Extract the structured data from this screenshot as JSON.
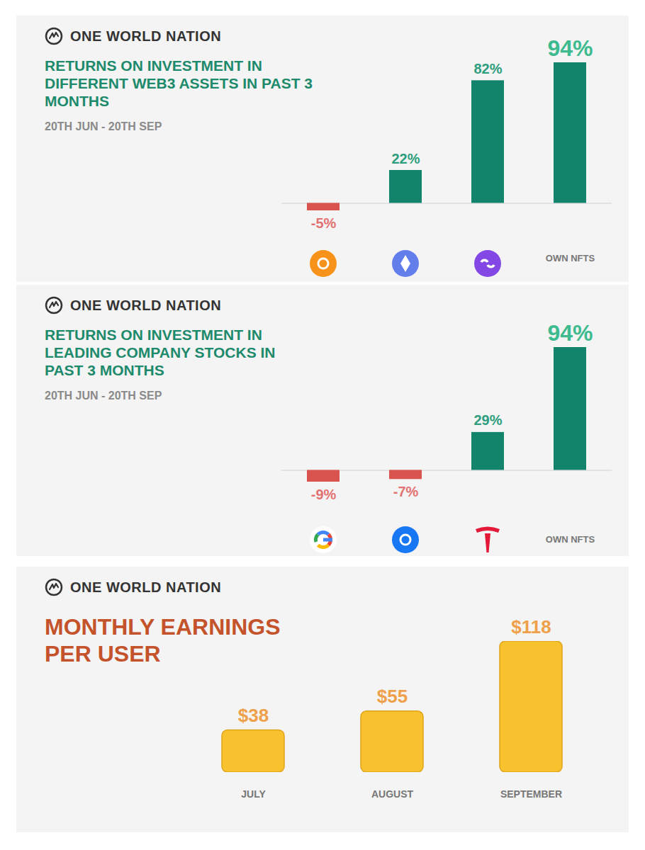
{
  "chart_data": [
    {
      "type": "bar",
      "brand": "ONE WORLD NATION",
      "title": "RETURNS ON INVESTMENT IN DIFFERENT WEB3 ASSETS IN PAST 3 MONTHS",
      "subtitle": "20TH JUN - 20TH SEP",
      "categories": [
        null,
        null,
        null,
        "OWN NFTS"
      ],
      "values": [
        -5,
        22,
        82,
        94
      ],
      "value_labels": [
        "-5%",
        "22%",
        "82%",
        "94%"
      ],
      "colors": [
        "#d9534f",
        "#12846b",
        "#12846b",
        "#12846b"
      ],
      "ylim": [
        -5,
        94
      ],
      "yticks": [],
      "tick_labels": "x",
      "data_labels": true,
      "grid": false
    },
    {
      "type": "bar",
      "brand": "ONE WORLD NATION",
      "title": "RETURNS ON INVESTMENT IN LEADING COMPANY STOCKS IN PAST 3 MONTHS",
      "subtitle": "20TH JUN - 20TH SEP",
      "categories": [
        null,
        null,
        null,
        "OWN NFTS"
      ],
      "values": [
        -9,
        -7,
        29,
        94
      ],
      "value_labels": [
        "-9%",
        "-7%",
        "29%",
        "94%"
      ],
      "colors": [
        "#d9534f",
        "#d9534f",
        "#12846b",
        "#12846b"
      ],
      "ylim": [
        -9,
        94
      ],
      "yticks": [],
      "tick_labels": "x",
      "data_labels": true,
      "grid": false
    },
    {
      "type": "bar",
      "brand": "ONE WORLD NATION",
      "title": "MONTHLY EARNINGS PER USER",
      "categories": [
        "JULY",
        "AUGUST",
        "SEPTEMBER"
      ],
      "values": [
        38,
        55,
        118
      ],
      "value_labels": [
        "$38",
        "$55",
        "$118"
      ],
      "color": "#f7c22e",
      "ylim": [
        0,
        118
      ],
      "yticks": [],
      "tick_labels": "x",
      "data_labels": true,
      "grid": false
    }
  ]
}
